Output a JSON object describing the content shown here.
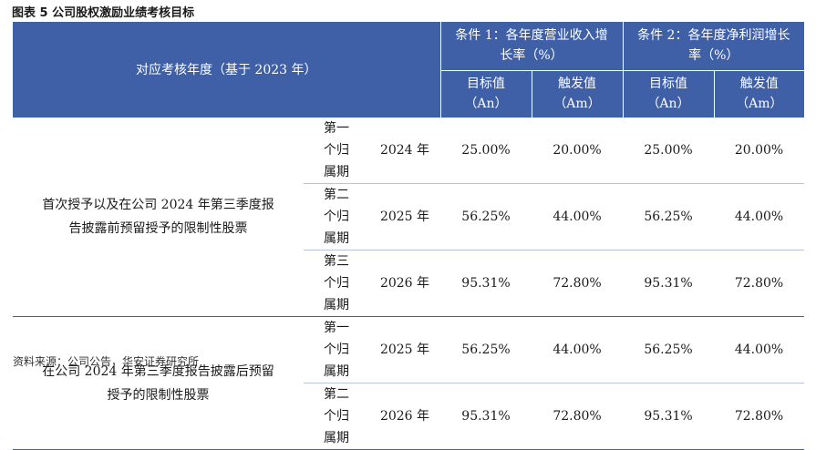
{
  "title": "图表 5 公司股权激励业绩考核目标",
  "header": {
    "year_col": "对应考核年度（基于 2023 年）",
    "cond1": "条件 1：各年度营业收入增长率（%）",
    "cond2": "条件 2：各年度净利润增长率（%）",
    "target": "目标值（An）",
    "trigger": "触发值（Am）"
  },
  "groups": [
    {
      "label": "首次授予以及在公司 2024 年第三季度报告披露前预留授予的限制性股票",
      "rows": [
        {
          "period": "第一个归属期",
          "year": "2024 年",
          "c1_target": "25.00%",
          "c1_trigger": "20.00%",
          "c2_target": "25.00%",
          "c2_trigger": "20.00%"
        },
        {
          "period": "第二个归属期",
          "year": "2025 年",
          "c1_target": "56.25%",
          "c1_trigger": "44.00%",
          "c2_target": "56.25%",
          "c2_trigger": "44.00%"
        },
        {
          "period": "第三个归属期",
          "year": "2026 年",
          "c1_target": "95.31%",
          "c1_trigger": "72.80%",
          "c2_target": "95.31%",
          "c2_trigger": "72.80%"
        }
      ]
    },
    {
      "label": "在公司 2024 年第三季度报告披露后预留授予的限制性股票",
      "rows": [
        {
          "period": "第一个归属期",
          "year": "2025 年",
          "c1_target": "56.25%",
          "c1_trigger": "44.00%",
          "c2_target": "56.25%",
          "c2_trigger": "44.00%"
        },
        {
          "period": "第二个归属期",
          "year": "2026 年",
          "c1_target": "95.31%",
          "c1_trigger": "72.80%",
          "c2_target": "95.31%",
          "c2_trigger": "72.80%"
        }
      ]
    }
  ],
  "footer": "资料来源：公司公告，华安证券研究所"
}
